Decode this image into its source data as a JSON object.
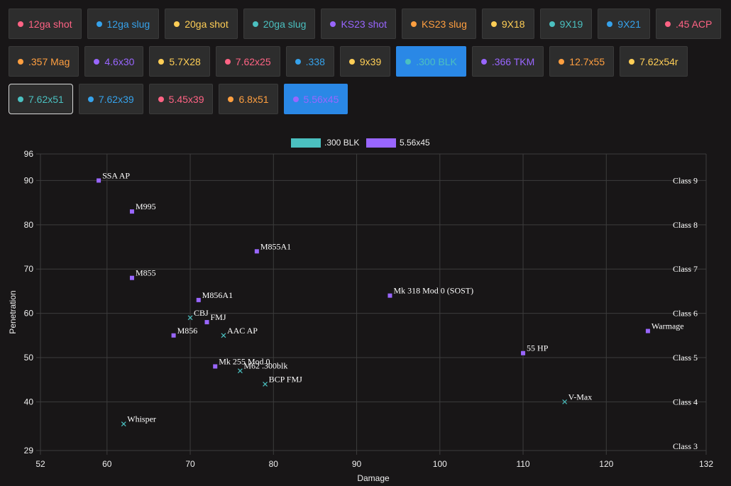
{
  "calibers": [
    [
      {
        "label": "12ga shot",
        "color": "#ff6384"
      },
      {
        "label": "12ga slug",
        "color": "#36a2eb"
      },
      {
        "label": "20ga shot",
        "color": "#ffce56"
      },
      {
        "label": "20ga slug",
        "color": "#4bc0c0"
      },
      {
        "label": "KS23 shot",
        "color": "#9966ff"
      },
      {
        "label": "KS23 slug",
        "color": "#ff9f40"
      },
      {
        "label": "9X18",
        "color": "#ffce56"
      },
      {
        "label": "9X19",
        "color": "#4bc0c0"
      },
      {
        "label": "9X21",
        "color": "#36a2eb"
      },
      {
        "label": ".45 ACP",
        "color": "#ff6384"
      }
    ],
    [
      {
        "label": ".357 Mag",
        "color": "#ff9f40"
      },
      {
        "label": "4.6x30",
        "color": "#9966ff"
      },
      {
        "label": "5.7X28",
        "color": "#ffce56"
      },
      {
        "label": "7.62x25",
        "color": "#ff6384"
      },
      {
        "label": ".338",
        "color": "#36a2eb"
      },
      {
        "label": "9x39",
        "color": "#ffce56"
      },
      {
        "label": ".300 BLK",
        "color": "#4bc0c0",
        "active": true
      },
      {
        "label": ".366 TKM",
        "color": "#9966ff"
      },
      {
        "label": "12.7x55",
        "color": "#ff9f40"
      },
      {
        "label": "7.62x54r",
        "color": "#ffce56"
      }
    ],
    [
      {
        "label": "7.62x51",
        "color": "#4bc0c0",
        "outlined": true
      },
      {
        "label": "7.62x39",
        "color": "#36a2eb"
      },
      {
        "label": "5.45x39",
        "color": "#ff6384"
      },
      {
        "label": "6.8x51",
        "color": "#ff9f40"
      },
      {
        "label": "5.56x45",
        "color": "#9966ff",
        "active": true
      }
    ]
  ],
  "chart_data": {
    "type": "scatter",
    "xlabel": "Damage",
    "ylabel": "Penetration",
    "xlim": [
      52,
      132
    ],
    "ylim": [
      29,
      96
    ],
    "x_ticks": [
      52,
      60,
      70,
      80,
      90,
      100,
      110,
      120,
      132
    ],
    "y_ticks": [
      29,
      40,
      50,
      60,
      70,
      80,
      90,
      96
    ],
    "grid": true,
    "legend_position": "top",
    "armor_classes": [
      {
        "label": "Class 3",
        "value": 30
      },
      {
        "label": "Class 4",
        "value": 40
      },
      {
        "label": "Class 5",
        "value": 50
      },
      {
        "label": "Class 6",
        "value": 60
      },
      {
        "label": "Class 7",
        "value": 70
      },
      {
        "label": "Class 8",
        "value": 80
      },
      {
        "label": "Class 9",
        "value": 90
      }
    ],
    "series": [
      {
        "name": ".300 BLK",
        "color": "#4bc0c0",
        "marker": "cross",
        "points": [
          {
            "label": "CBJ",
            "x": 70,
            "y": 59
          },
          {
            "label": "AAC AP",
            "x": 74,
            "y": 55
          },
          {
            "label": "M62 .300blk",
            "x": 76,
            "y": 47
          },
          {
            "label": "BCP FMJ",
            "x": 79,
            "y": 44
          },
          {
            "label": "Whisper",
            "x": 62,
            "y": 35
          },
          {
            "label": "V-Max",
            "x": 115,
            "y": 40
          }
        ]
      },
      {
        "name": "5.56x45",
        "color": "#9966ff",
        "marker": "square",
        "points": [
          {
            "label": "SSA AP",
            "x": 59,
            "y": 90
          },
          {
            "label": "M995",
            "x": 63,
            "y": 83
          },
          {
            "label": "M855A1",
            "x": 78,
            "y": 74
          },
          {
            "label": "M855",
            "x": 63,
            "y": 68
          },
          {
            "label": "M856A1",
            "x": 71,
            "y": 63
          },
          {
            "label": "Mk 318 Mod 0 (SOST)",
            "x": 94,
            "y": 64
          },
          {
            "label": "FMJ",
            "x": 72,
            "y": 58
          },
          {
            "label": "M856",
            "x": 68,
            "y": 55
          },
          {
            "label": "Warmage",
            "x": 125,
            "y": 56
          },
          {
            "label": "55 HP",
            "x": 110,
            "y": 51
          },
          {
            "label": "Mk 255 Mod 0",
            "x": 73,
            "y": 48
          }
        ]
      }
    ]
  }
}
